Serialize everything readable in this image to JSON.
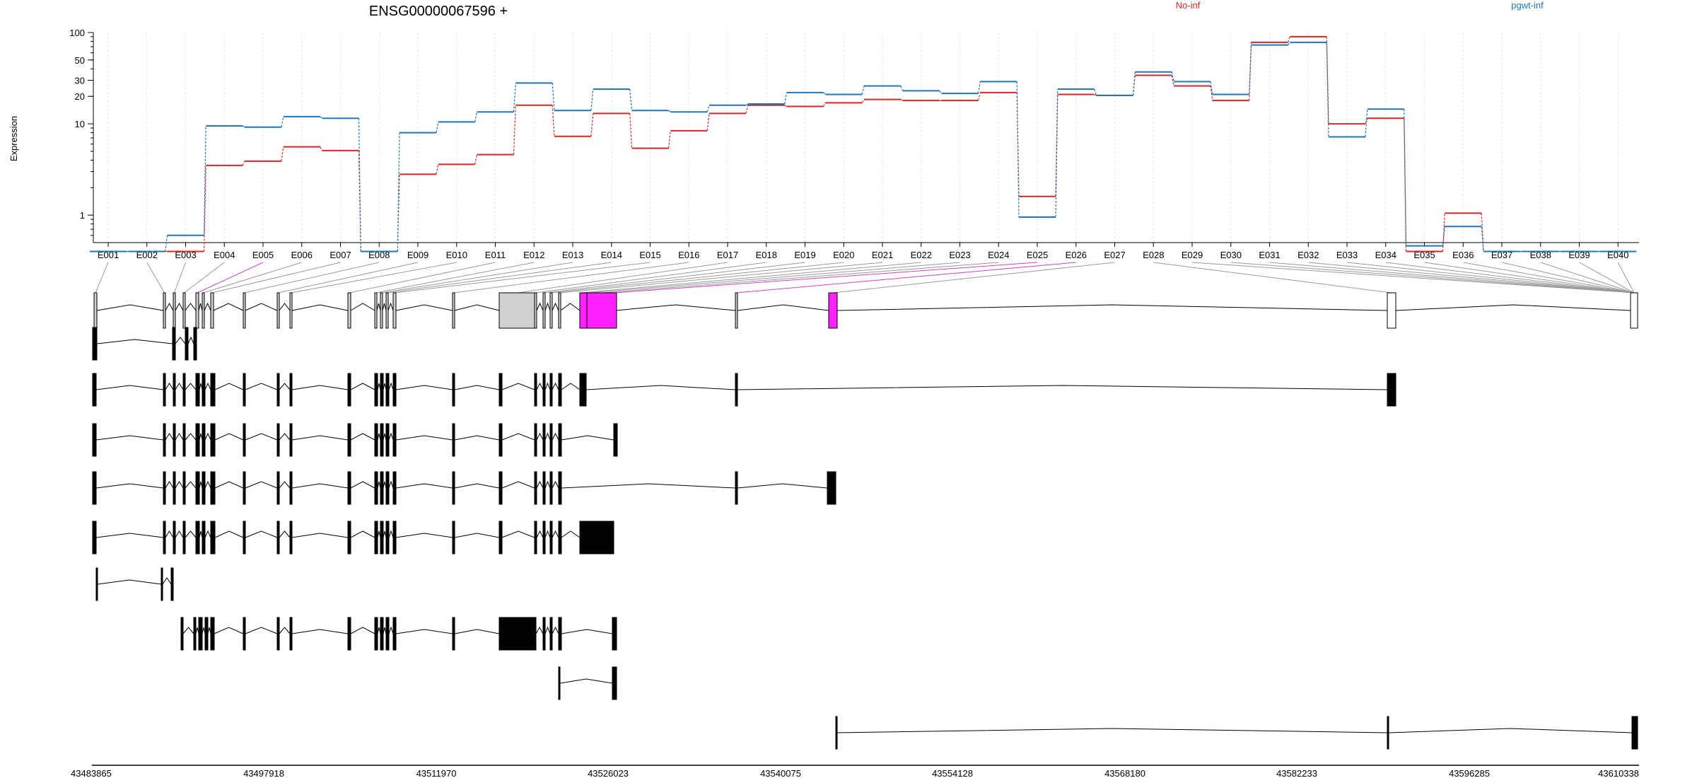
{
  "chart_data": {
    "type": "line",
    "title": "ENSG00000067596 +",
    "xlabel": "",
    "ylabel": "Expression",
    "y_scale": "log",
    "ylim": [
      0.5,
      100
    ],
    "yticks": [
      1,
      10,
      20,
      30,
      50,
      100
    ],
    "grid": "vertical dotted lines at each exon",
    "legend_position": "top-right",
    "categories": [
      "E001",
      "E002",
      "E003",
      "E004",
      "E005",
      "E006",
      "E007",
      "E008",
      "E009",
      "E010",
      "E011",
      "E012",
      "E013",
      "E014",
      "E015",
      "E016",
      "E017",
      "E018",
      "E019",
      "E020",
      "E021",
      "E022",
      "E023",
      "E024",
      "E025",
      "E026",
      "E027",
      "E028",
      "E029",
      "E030",
      "E031",
      "E032",
      "E033",
      "E034",
      "E035",
      "E036",
      "E037",
      "E038",
      "E039",
      "E040"
    ],
    "series": [
      {
        "name": "No-inf",
        "color": "#d62728",
        "values": [
          0.4,
          0.4,
          0.4,
          3.5,
          3.9,
          5.6,
          5.1,
          0.4,
          2.8,
          3.6,
          4.6,
          16,
          7.3,
          13,
          5.4,
          8.4,
          13,
          16,
          15.5,
          17,
          18.5,
          18,
          18,
          22,
          1.6,
          21,
          20.5,
          34,
          26,
          18,
          78,
          90,
          10,
          11.5,
          0.4,
          1.05,
          0.4,
          0.4,
          0.4,
          0.4
        ]
      },
      {
        "name": "pgwt-inf",
        "color": "#1f77b4",
        "values": [
          0.4,
          0.4,
          0.6,
          9.5,
          9.2,
          12,
          11.5,
          0.4,
          8,
          10.5,
          13.5,
          28,
          14,
          24,
          14,
          13.5,
          16,
          16.5,
          22,
          21,
          26,
          23,
          21.5,
          29,
          0.95,
          24,
          20.5,
          37,
          29,
          21,
          73,
          78,
          7.2,
          14.5,
          0.46,
          0.75,
          0.4,
          0.4,
          0.4,
          0.4
        ]
      }
    ],
    "gene_model": {
      "genome_axis_ticks": [
        "43483865",
        "43497918",
        "43511970",
        "43526023",
        "43540075",
        "43554128",
        "43568180",
        "43582233",
        "43596285",
        "43610338"
      ],
      "transcript_count": 9
    }
  }
}
